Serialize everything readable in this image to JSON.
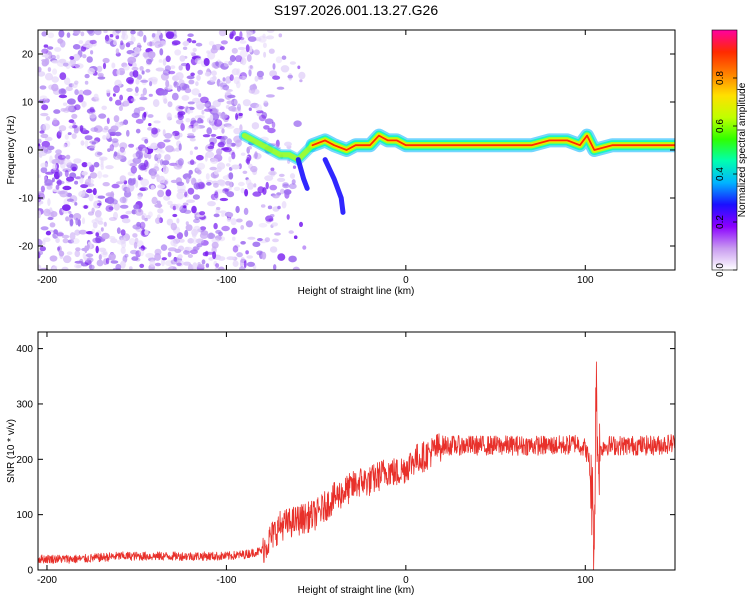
{
  "title": "S197.2026.001.13.27.G26",
  "chart_data": [
    {
      "type": "heatmap",
      "xlabel": "Height of straight line (km)",
      "ylabel": "Frequency (Hz)",
      "xlim": [
        -205,
        150
      ],
      "ylim": [
        -25,
        25
      ],
      "xticks": [
        -200,
        -100,
        0,
        100
      ],
      "yticks": [
        -20,
        -10,
        0,
        10,
        20
      ],
      "ridge": [
        {
          "x": -90,
          "y": 3
        },
        {
          "x": -85,
          "y": 2
        },
        {
          "x": -80,
          "y": 1
        },
        {
          "x": -75,
          "y": 0
        },
        {
          "x": -70,
          "y": -1
        },
        {
          "x": -65,
          "y": -1
        },
        {
          "x": -60,
          "y": -2
        },
        {
          "x": -52,
          "y": 1
        },
        {
          "x": -45,
          "y": 2
        },
        {
          "x": -40,
          "y": 1
        },
        {
          "x": -33,
          "y": 0
        },
        {
          "x": -28,
          "y": 1
        },
        {
          "x": -20,
          "y": 1
        },
        {
          "x": -15,
          "y": 3
        },
        {
          "x": -10,
          "y": 2
        },
        {
          "x": -5,
          "y": 2
        },
        {
          "x": 0,
          "y": 1
        },
        {
          "x": 10,
          "y": 1
        },
        {
          "x": 30,
          "y": 1
        },
        {
          "x": 50,
          "y": 1
        },
        {
          "x": 70,
          "y": 1
        },
        {
          "x": 80,
          "y": 2
        },
        {
          "x": 90,
          "y": 2
        },
        {
          "x": 97,
          "y": 1
        },
        {
          "x": 101,
          "y": 3
        },
        {
          "x": 105,
          "y": 0
        },
        {
          "x": 115,
          "y": 1
        },
        {
          "x": 130,
          "y": 1
        },
        {
          "x": 150,
          "y": 1
        }
      ],
      "branches": [
        [
          {
            "x": -60,
            "y": -2
          },
          {
            "x": -57,
            "y": -6
          },
          {
            "x": -55,
            "y": -8
          }
        ],
        [
          {
            "x": -45,
            "y": -2
          },
          {
            "x": -40,
            "y": -6
          },
          {
            "x": -36,
            "y": -10
          },
          {
            "x": -35,
            "y": -13
          }
        ]
      ],
      "colorbar": {
        "label": "Normalized spectral amplitude",
        "range": [
          0,
          1
        ],
        "ticks": [
          "0.0",
          "0.2",
          "0.4",
          "0.6",
          "0.8"
        ],
        "colors": [
          "#ffffff",
          "#c89af0",
          "#8b00ff",
          "#1a10ff",
          "#00b4ff",
          "#00ffb0",
          "#30ff00",
          "#c0ff00",
          "#ffe000",
          "#ff8000",
          "#ff2a00",
          "#ff00a0"
        ]
      }
    },
    {
      "type": "line",
      "xlabel": "Height of straight line (km)",
      "ylabel": "SNR (10 * v/v)",
      "xlim": [
        -205,
        150
      ],
      "ylim": [
        0,
        430
      ],
      "xticks": [
        -200,
        -100,
        0,
        100
      ],
      "yticks": [
        0,
        100,
        200,
        300,
        400
      ],
      "color": "#e8302a",
      "series": [
        {
          "name": "SNR",
          "x": [
            -205,
            -180,
            -160,
            -140,
            -120,
            -100,
            -90,
            -80,
            -75,
            -70,
            -65,
            -60,
            -55,
            -50,
            -45,
            -40,
            -35,
            -30,
            -25,
            -20,
            -15,
            -10,
            -5,
            0,
            5,
            10,
            15,
            20,
            25,
            30,
            35,
            40,
            50,
            60,
            70,
            80,
            90,
            95,
            100,
            102,
            104,
            105,
            106,
            107,
            108,
            110,
            115,
            120,
            130,
            140,
            150
          ],
          "values": [
            20,
            20,
            25,
            25,
            25,
            25,
            28,
            35,
            60,
            80,
            85,
            90,
            95,
            100,
            115,
            130,
            140,
            150,
            160,
            160,
            170,
            180,
            175,
            185,
            200,
            205,
            215,
            225,
            225,
            225,
            225,
            225,
            225,
            225,
            225,
            225,
            225,
            230,
            220,
            200,
            120,
            40,
            350,
            200,
            210,
            225,
            225,
            225,
            225,
            225,
            230
          ]
        }
      ]
    }
  ]
}
